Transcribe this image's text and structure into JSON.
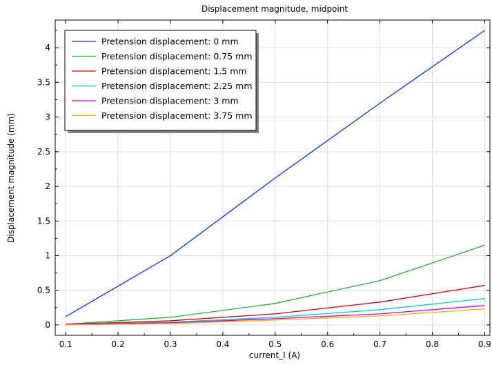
{
  "chart_data": {
    "type": "line",
    "title": "Displacement magnitude, midpoint",
    "xlabel": "current_I (A)",
    "ylabel": "Displacement magnitude (mm)",
    "xlim": [
      0.08,
      0.91
    ],
    "ylim": [
      -0.15,
      4.4
    ],
    "x": [
      0.1,
      0.3,
      0.5,
      0.7,
      0.9
    ],
    "xticks": [
      "0.1",
      "0.2",
      "0.3",
      "0.4",
      "0.5",
      "0.6",
      "0.7",
      "0.8",
      "0.9"
    ],
    "xtick_values": [
      0.1,
      0.2,
      0.3,
      0.4,
      0.5,
      0.6,
      0.7,
      0.8,
      0.9
    ],
    "yticks": [
      "0",
      "0.5",
      "1",
      "1.5",
      "2",
      "2.5",
      "3",
      "3.5",
      "4"
    ],
    "ytick_values": [
      0,
      0.5,
      1,
      1.5,
      2,
      2.5,
      3,
      3.5,
      4
    ],
    "grid": true,
    "legend_position": "top-left",
    "series": [
      {
        "name": "Pretension displacement: 0 mm",
        "color": "#0033ff",
        "values": [
          0.12,
          1.0,
          2.12,
          3.2,
          4.25
        ]
      },
      {
        "name": "Pretension displacement: 0.75 mm",
        "color": "#22b033",
        "values": [
          0.01,
          0.11,
          0.31,
          0.64,
          1.15
        ]
      },
      {
        "name": "Pretension displacement: 1.5 mm",
        "color": "#cc0000",
        "values": [
          0.01,
          0.06,
          0.16,
          0.33,
          0.57
        ]
      },
      {
        "name": "Pretension displacement: 2.25 mm",
        "color": "#00cccc",
        "values": [
          0.01,
          0.04,
          0.11,
          0.22,
          0.38
        ]
      },
      {
        "name": "Pretension displacement: 3 mm",
        "color": "#cc00cc",
        "values": [
          0.01,
          0.03,
          0.09,
          0.16,
          0.28
        ]
      },
      {
        "name": "Pretension displacement: 3.75 mm",
        "color": "#ffaa00",
        "values": [
          0.0,
          0.02,
          0.07,
          0.13,
          0.23
        ]
      }
    ]
  }
}
